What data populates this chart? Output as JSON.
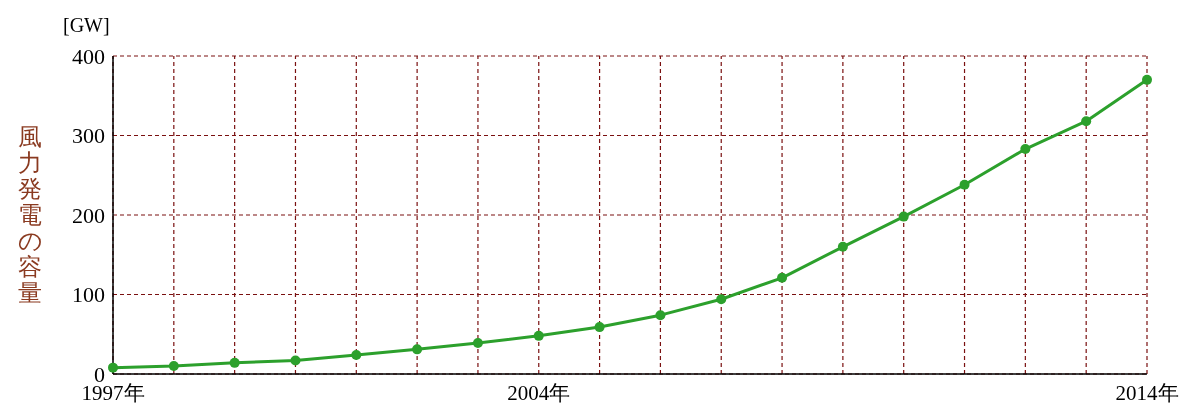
{
  "chart_data": {
    "type": "line",
    "ylabel": "風力発電の容量",
    "annotations": [
      "[GW]"
    ],
    "x": [
      1997,
      1998,
      1999,
      2000,
      2001,
      2002,
      2003,
      2004,
      2005,
      2006,
      2007,
      2008,
      2009,
      2010,
      2011,
      2012,
      2013,
      2014
    ],
    "series": [
      {
        "color": "#2ca02c",
        "values": [
          8,
          10,
          14,
          17,
          24,
          31,
          39,
          48,
          59,
          74,
          94,
          121,
          160,
          198,
          238,
          283,
          318,
          370
        ]
      }
    ],
    "xlim": [
      1997,
      2014
    ],
    "xticks": [
      {
        "value": 1997,
        "label": "1997年"
      },
      {
        "value": 1998,
        "label": null
      },
      {
        "value": 1999,
        "label": null
      },
      {
        "value": 2000,
        "label": null
      },
      {
        "value": 2001,
        "label": null
      },
      {
        "value": 2002,
        "label": null
      },
      {
        "value": 2003,
        "label": null
      },
      {
        "value": 2004,
        "label": "2004年"
      },
      {
        "value": 2005,
        "label": null
      },
      {
        "value": 2006,
        "label": null
      },
      {
        "value": 2007,
        "label": null
      },
      {
        "value": 2008,
        "label": null
      },
      {
        "value": 2009,
        "label": null
      },
      {
        "value": 2010,
        "label": null
      },
      {
        "value": 2011,
        "label": null
      },
      {
        "value": 2012,
        "label": null
      },
      {
        "value": 2013,
        "label": null
      },
      {
        "value": 2014,
        "label": "2014年"
      }
    ],
    "ylim": [
      0,
      400
    ],
    "yticks": [
      0,
      100,
      200,
      300,
      400
    ],
    "grid": true,
    "marker": "circle",
    "line_style": "solid"
  }
}
